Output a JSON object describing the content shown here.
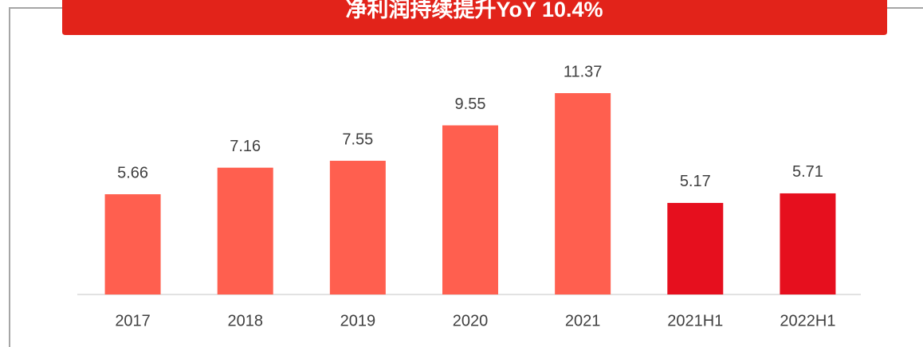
{
  "chart_data": {
    "type": "bar",
    "title": "净利润持续提升YoY 10.4%",
    "categories": [
      "2017",
      "2018",
      "2019",
      "2020",
      "2021",
      "2021H1",
      "2022H1"
    ],
    "values": [
      5.66,
      7.16,
      7.55,
      9.55,
      11.37,
      5.17,
      5.71
    ],
    "colors": [
      "#ff5f4f",
      "#ff5f4f",
      "#ff5f4f",
      "#ff5f4f",
      "#ff5f4f",
      "#e60f1e",
      "#e60f1e"
    ],
    "ylim": [
      0,
      12
    ]
  }
}
